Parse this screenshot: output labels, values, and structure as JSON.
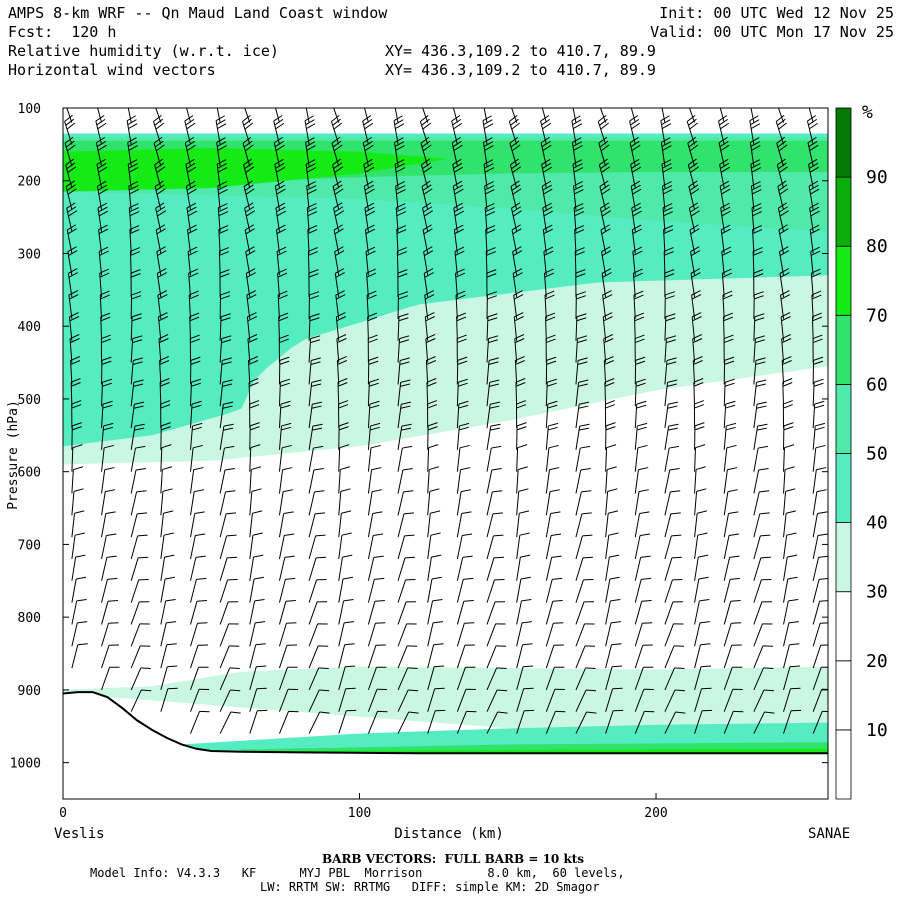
{
  "header": {
    "title": "AMPS 8-km WRF -- Qn Maud Land Coast window",
    "forecast": "Fcst:  120 h",
    "field1": "Relative humidity (w.r.t. ice)",
    "field2": "Horizontal wind vectors",
    "init": "Init: 00 UTC Wed 12 Nov 25",
    "valid": "Valid: 00 UTC Mon 17 Nov 25",
    "xy1": "XY= 436.3,109.2 to 410.7, 89.9",
    "xy2": "XY= 436.3,109.2 to 410.7, 89.9"
  },
  "footer": {
    "barb_note": "BARB VECTORS:  FULL BARB = 10 kts",
    "model_info": "Model Info: V4.3.3   KF      MYJ PBL  Morrison         8.0 km,  60 levels,",
    "physics": "LW: RRTM SW: RRTMG   DIFF: simple KM: 2D Smagor"
  },
  "colors": {
    "rh_0_30": "#ffffff",
    "rh_30_40": "#c9f7e4",
    "rh_40_50": "#55ecc2",
    "rh_50_60": "#4fe9a9",
    "rh_60_70": "#31e36c",
    "rh_70_80": "#14ea14",
    "rh_80_90": "#0cae0c",
    "rh_90_100": "#067a06",
    "barb": "#000000",
    "terrain": "#000000"
  },
  "chart_data": {
    "type": "cross-section",
    "title": "Relative humidity (w.r.t. ice) and horizontal wind vectors",
    "xlabel": "Distance (km)",
    "ylabel": "Pressure (hPa)",
    "xlim": [
      0,
      258
    ],
    "ylim": [
      1050,
      100
    ],
    "x_ticks": [
      0,
      100,
      200
    ],
    "y_ticks": [
      100,
      200,
      300,
      400,
      500,
      600,
      700,
      800,
      900,
      1000
    ],
    "endpoints": {
      "left": "Veslis",
      "right": "SANAE"
    },
    "colorbar": {
      "unit": "%",
      "levels": [
        0,
        10,
        20,
        30,
        40,
        50,
        60,
        70,
        80,
        90,
        100
      ],
      "labels": [
        "10",
        "20",
        "30",
        "40",
        "50",
        "60",
        "70",
        "80",
        "90"
      ],
      "colors": [
        "#ffffff",
        "#ffffff",
        "#ffffff",
        "#c9f7e4",
        "#55ecc2",
        "#4fe9a9",
        "#31e36c",
        "#14ea14",
        "#0cae0c",
        "#067a06"
      ]
    },
    "terrain_surface_hpa": [
      [
        0,
        905
      ],
      [
        5,
        903
      ],
      [
        10,
        903
      ],
      [
        15,
        910
      ],
      [
        20,
        925
      ],
      [
        25,
        942
      ],
      [
        30,
        955
      ],
      [
        35,
        966
      ],
      [
        40,
        975
      ],
      [
        45,
        981
      ],
      [
        50,
        984
      ],
      [
        60,
        985
      ],
      [
        80,
        986
      ],
      [
        120,
        987
      ],
      [
        200,
        987
      ],
      [
        258,
        987
      ]
    ],
    "rh_bands": [
      {
        "level": "30-40",
        "top": [
          [
            0,
            135
          ],
          [
            50,
            135
          ],
          [
            100,
            135
          ],
          [
            150,
            135
          ],
          [
            200,
            135
          ],
          [
            258,
            135
          ]
        ],
        "bottom": [
          [
            0,
            590
          ],
          [
            50,
            585
          ],
          [
            100,
            565
          ],
          [
            150,
            530
          ],
          [
            200,
            488
          ],
          [
            258,
            455
          ]
        ]
      },
      {
        "level": "40-50",
        "top": [
          [
            0,
            135
          ],
          [
            50,
            135
          ],
          [
            100,
            135
          ],
          [
            150,
            135
          ],
          [
            200,
            135
          ],
          [
            258,
            135
          ]
        ],
        "bottom": [
          [
            0,
            565
          ],
          [
            30,
            550
          ],
          [
            60,
            515
          ],
          [
            65,
            470
          ],
          [
            80,
            420
          ],
          [
            120,
            370
          ],
          [
            180,
            340
          ],
          [
            258,
            330
          ]
        ]
      },
      {
        "level": "50-60",
        "top": [
          [
            0,
            140
          ],
          [
            100,
            140
          ],
          [
            200,
            140
          ],
          [
            258,
            140
          ]
        ],
        "bottom": [
          [
            0,
            215
          ],
          [
            50,
            220
          ],
          [
            100,
            225
          ],
          [
            150,
            238
          ],
          [
            200,
            255
          ],
          [
            258,
            270
          ]
        ]
      },
      {
        "level": "60-70",
        "top": [
          [
            0,
            145
          ],
          [
            100,
            145
          ],
          [
            200,
            145
          ],
          [
            258,
            145
          ]
        ],
        "bottom": [
          [
            0,
            205
          ],
          [
            40,
            205
          ],
          [
            100,
            195
          ],
          [
            150,
            190
          ],
          [
            200,
            188
          ],
          [
            258,
            188
          ]
        ]
      },
      {
        "level": "70-80",
        "top": [
          [
            0,
            160
          ],
          [
            50,
            155
          ],
          [
            100,
            160
          ],
          [
            130,
            170
          ]
        ],
        "bottom": [
          [
            0,
            215
          ],
          [
            50,
            210
          ],
          [
            100,
            190
          ],
          [
            130,
            170
          ]
        ]
      },
      {
        "level": "30-40 low",
        "top": [
          [
            0,
            900
          ],
          [
            30,
            895
          ],
          [
            60,
            875
          ],
          [
            100,
            868
          ],
          [
            150,
            870
          ],
          [
            200,
            872
          ],
          [
            258,
            868
          ]
        ],
        "bottom": [
          [
            0,
            905
          ],
          [
            258,
            987
          ]
        ]
      },
      {
        "level": "40-50 low",
        "top": [
          [
            40,
            975
          ],
          [
            100,
            960
          ],
          [
            150,
            953
          ],
          [
            200,
            948
          ],
          [
            258,
            945
          ]
        ],
        "bottom": [
          [
            40,
            985
          ],
          [
            258,
            987
          ]
        ]
      },
      {
        "level": "60-70 low",
        "top": [
          [
            60,
            982
          ],
          [
            150,
            975
          ],
          [
            258,
            972
          ]
        ],
        "bottom": [
          [
            60,
            986
          ],
          [
            258,
            987
          ]
        ]
      },
      {
        "level": "70-80 low",
        "top": [
          [
            80,
            984
          ],
          [
            258,
            981
          ]
        ],
        "bottom": [
          [
            80,
            987
          ],
          [
            258,
            987
          ]
        ]
      }
    ],
    "wind_barb_columns_km": [
      3,
      13,
      23,
      33,
      43,
      53,
      63,
      73,
      83,
      93,
      103,
      113,
      123,
      133,
      143,
      153,
      163,
      173,
      183,
      193,
      203,
      213,
      223,
      233,
      243,
      253
    ],
    "wind_barb_levels_hpa": [
      120,
      150,
      180,
      210,
      240,
      270,
      300,
      330,
      360,
      390,
      420,
      450,
      480,
      510,
      540,
      570,
      600,
      630,
      660,
      690,
      720,
      750,
      780,
      810,
      840,
      870,
      900,
      930,
      960
    ],
    "wind_barb_note": "Approximate wind field: mostly westerly aloft with barbs 20-40 kts, weaker mid/low levels"
  }
}
